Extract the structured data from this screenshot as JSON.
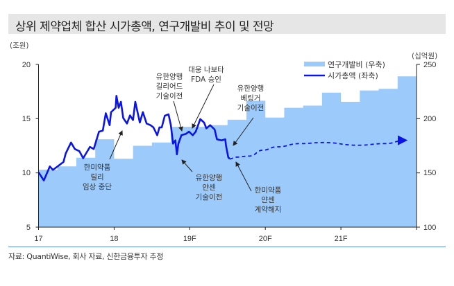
{
  "title": "상위 제약업체 합산 시가총액, 연구개발비 추이 및 전망",
  "source": "자료: QuantiWise, 회사 자료, 신한금융투자 추정",
  "colors": {
    "area": "#9ccbfb",
    "line": "#0a14e6",
    "title_bg": "#e6e6e6",
    "rule": "#5b8de8"
  },
  "chart_data": {
    "type": "area+line",
    "title": "상위 제약업체 합산 시가총액, 연구개발비 추이 및 전망",
    "left_axis": {
      "unit": "(조원)",
      "ylim": [
        5,
        20
      ],
      "ticks": [
        "5",
        "10",
        "15",
        "20"
      ]
    },
    "right_axis": {
      "unit": "(십억원)",
      "ylim": [
        100,
        250
      ],
      "ticks": [
        "100",
        "150",
        "200",
        "250"
      ]
    },
    "x_axis": {
      "xlim": [
        17,
        22
      ],
      "ticks": [
        17,
        18,
        19,
        20,
        21
      ],
      "tick_labels": [
        "17",
        "18",
        "19F",
        "20F",
        "21F"
      ]
    },
    "legend": {
      "position": "top-right",
      "entries": [
        "연구개발비 (우축)",
        "시가총액 (좌축)"
      ]
    },
    "grid": false,
    "series": [
      {
        "name": "연구개발비 (우축)",
        "type": "step-area",
        "axis": "right",
        "quarter_start": [
          17.0,
          17.25,
          17.5,
          17.75,
          18.0,
          18.25,
          18.5,
          18.75,
          19.0,
          19.25,
          19.5,
          19.75,
          20.0,
          20.25,
          20.5,
          20.75,
          21.0,
          21.25,
          21.5,
          21.75
        ],
        "values": [
          153,
          156,
          164,
          181,
          163,
          175,
          178,
          192.5,
          192.5,
          194,
          199,
          216.5,
          201,
          210,
          212,
          224,
          215.5,
          226,
          227.5,
          239
        ]
      },
      {
        "name": "시가총액 (좌축)",
        "type": "line",
        "axis": "left",
        "x": [
          17.0,
          17.07,
          17.15,
          17.19,
          17.29,
          17.33,
          17.36,
          17.43,
          17.48,
          17.54,
          17.59,
          17.68,
          17.73,
          17.8,
          17.85,
          17.89,
          17.94,
          17.96,
          18.02,
          18.03,
          18.06,
          18.09,
          18.12,
          18.17,
          18.21,
          18.25,
          18.28,
          18.34,
          18.38,
          18.43,
          18.48,
          18.52,
          18.57,
          18.6,
          18.63,
          18.67,
          18.72,
          18.75,
          18.78,
          18.81,
          18.83,
          18.85,
          18.89,
          18.95,
          18.99,
          19.04,
          19.08,
          19.14,
          19.19,
          19.22,
          19.27,
          19.33,
          19.36,
          19.42,
          19.47,
          19.48,
          19.51,
          19.53
        ],
        "values": [
          10.06,
          9.3,
          10.6,
          10.27,
          10.8,
          11.0,
          11.8,
          12.8,
          12.2,
          12.0,
          11.35,
          12.4,
          12.2,
          13.8,
          13.9,
          15.5,
          14.4,
          15.6,
          16.0,
          17.1,
          16.0,
          16.55,
          15.06,
          14.55,
          15.3,
          14.87,
          16.55,
          14.64,
          15.6,
          14.55,
          14.4,
          14.2,
          13.47,
          14.2,
          14.2,
          15.27,
          15.4,
          14.4,
          12.7,
          13.0,
          11.7,
          12.7,
          13.47,
          13.6,
          13.8,
          13.47,
          13.8,
          14.96,
          14.64,
          14.1,
          14.4,
          14.0,
          13.1,
          13.0,
          13.1,
          12.5,
          11.45,
          11.28
        ]
      },
      {
        "name": "시가총액 전망",
        "type": "dashed-line-arrow",
        "axis": "left",
        "x": [
          19.53,
          19.61,
          19.79,
          19.97,
          20.15,
          20.46,
          20.77,
          21.22,
          21.59,
          21.85
        ],
        "values": [
          11.28,
          11.45,
          11.55,
          12.1,
          12.4,
          12.7,
          12.8,
          12.55,
          12.7,
          13.0
        ]
      }
    ],
    "annotations": [
      {
        "lines": [
          "대웅 나보타",
          "FDA 승인"
        ]
      },
      {
        "lines": [
          "유한양행",
          "길리어드",
          "기술이전"
        ]
      },
      {
        "lines": [
          "유한양행",
          "베링거",
          "기술이전"
        ]
      },
      {
        "lines": [
          "한미약품",
          "릴리",
          "임상 중단"
        ]
      },
      {
        "lines": [
          "유한양행",
          "얀센",
          "기술이전"
        ]
      },
      {
        "lines": [
          "한미약품",
          "얀센",
          "계약해지"
        ]
      }
    ]
  }
}
